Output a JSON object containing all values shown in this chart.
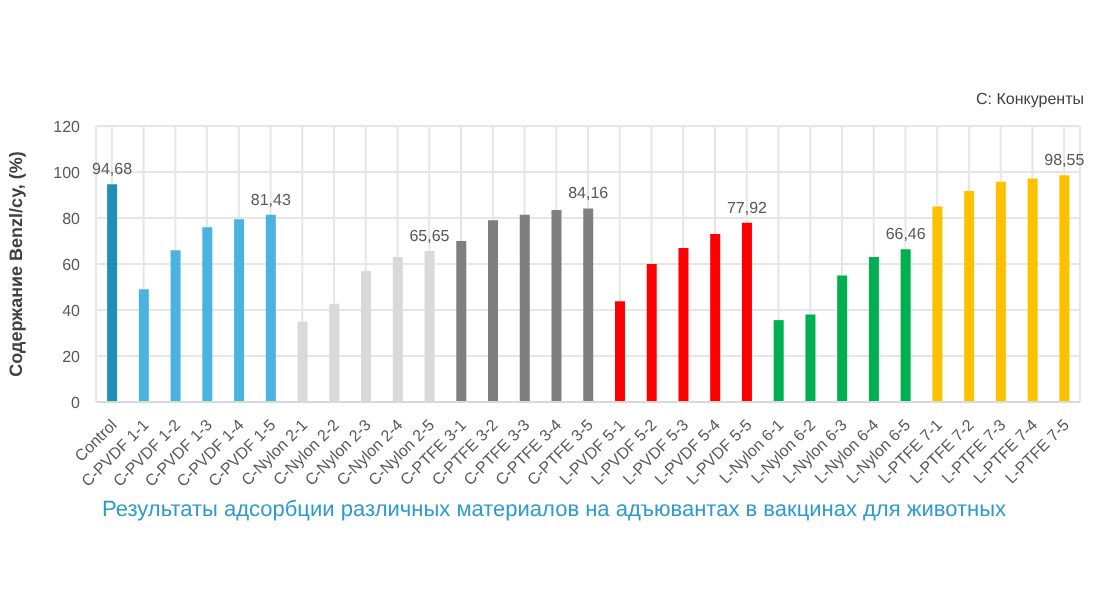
{
  "chart_data": {
    "type": "bar",
    "title": "Результаты адсорбции различных материалов на адъювантах в вакцинах для животных",
    "ylabel": "Содержание Benzl/cy, (%)",
    "annotations": [
      "C: Конкуренты"
    ],
    "categories": [
      "Control",
      "C-PVDF 1-1",
      "C-PVDF 1-2",
      "C-PVDF 1-3",
      "C-PVDF 1-4",
      "C-PVDF 1-5",
      "C-Nylon 2-1",
      "C-Nylon 2-2",
      "C-Nylon 2-3",
      "C-Nylon 2-4",
      "C-Nylon 2-5",
      "C-PTFE 3-1",
      "C-PTFE 3-2",
      "C-PTFE 3-3",
      "C-PTFE 3-4",
      "C-PTFE 3-5",
      "L-PVDF 5-1",
      "L-PVDF 5-2",
      "L-PVDF 5-3",
      "L-PVDF 5-4",
      "L-PVDF 5-5",
      "L-Nylon 6-1",
      "L-Nylon 6-2",
      "L-Nylon 6-3",
      "L-Nylon 6-4",
      "L-Nylon 6-5",
      "L-PTFE 7-1",
      "L-PTFE 7-2",
      "L-PTFE 7-3",
      "L-PTFE 7-4",
      "L-PTFE 7-5"
    ],
    "values": [
      94.68,
      49,
      66,
      76,
      79.5,
      81.43,
      35,
      42.7,
      57,
      63,
      65.65,
      70,
      79,
      81.4,
      83.5,
      84.16,
      43.8,
      60,
      67,
      73,
      77.92,
      35.6,
      38,
      55,
      63,
      66.46,
      85,
      91.7,
      95.8,
      97.2,
      98.55
    ],
    "value_labels": [
      "94,68",
      null,
      null,
      null,
      null,
      "81,43",
      null,
      null,
      null,
      null,
      "65,65",
      null,
      null,
      null,
      null,
      "84,16",
      null,
      null,
      null,
      null,
      "77,92",
      null,
      null,
      null,
      null,
      "66,46",
      null,
      null,
      null,
      null,
      "98,55"
    ],
    "colors": [
      "#1f8fb8",
      "#4ab3e0",
      "#4ab3e0",
      "#4ab3e0",
      "#4ab3e0",
      "#4ab3e0",
      "#d9d9d9",
      "#d9d9d9",
      "#d9d9d9",
      "#d9d9d9",
      "#d9d9d9",
      "#7f7f7f",
      "#7f7f7f",
      "#7f7f7f",
      "#7f7f7f",
      "#7f7f7f",
      "#ff0000",
      "#ff0000",
      "#ff0000",
      "#ff0000",
      "#ff0000",
      "#00b050",
      "#00b050",
      "#00b050",
      "#00b050",
      "#00b050",
      "#ffc000",
      "#ffc000",
      "#ffc000",
      "#ffc000",
      "#ffc000"
    ],
    "ylim": [
      0,
      120
    ],
    "yticks": [
      0,
      20,
      40,
      60,
      80,
      100,
      120
    ],
    "grid": true
  }
}
